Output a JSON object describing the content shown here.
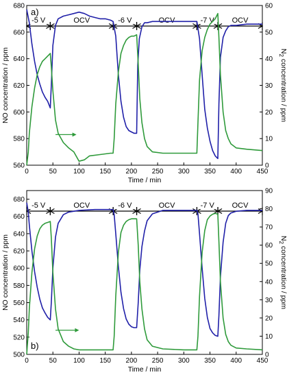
{
  "chart_data": [
    {
      "type": "line",
      "panel_label": "a)",
      "xlabel": "Time / min",
      "ylabel_left": "NO concentration / ppm",
      "ylabel_right_prefix": "N",
      "ylabel_right_sub": "2",
      "ylabel_right_suffix": " concentration / ppm",
      "xlim": [
        0,
        450
      ],
      "ylim_left": [
        560,
        680
      ],
      "ylim_right": [
        0,
        60
      ],
      "x_ticks": [
        0,
        50,
        100,
        150,
        200,
        250,
        300,
        350,
        400,
        450
      ],
      "y_ticks_left": [
        560,
        580,
        600,
        620,
        640,
        660,
        680
      ],
      "y_ticks_right": [
        0,
        10,
        20,
        30,
        40,
        50,
        60
      ],
      "phases": [
        {
          "label": "-5 V",
          "start": 0,
          "end": 45
        },
        {
          "label": "OCV",
          "start": 45,
          "end": 165
        },
        {
          "label": "-6 V",
          "start": 165,
          "end": 210
        },
        {
          "label": "OCV",
          "start": 210,
          "end": 325
        },
        {
          "label": "-7 V",
          "start": 325,
          "end": 365
        },
        {
          "label": "OCV",
          "start": 365,
          "end": 450
        }
      ],
      "arrow": {
        "from_x": 55,
        "to_x": 95,
        "y_left": 583
      },
      "series": [
        {
          "axis": "left",
          "color": "#1f1fa8",
          "x": [
            0,
            5,
            10,
            15,
            20,
            25,
            30,
            35,
            40,
            45,
            47,
            50,
            55,
            60,
            70,
            80,
            90,
            100,
            110,
            120,
            130,
            140,
            150,
            160,
            165,
            170,
            175,
            180,
            185,
            190,
            195,
            200,
            205,
            210,
            212,
            215,
            220,
            225,
            230,
            240,
            250,
            260,
            280,
            300,
            320,
            325,
            330,
            335,
            340,
            345,
            350,
            355,
            360,
            365,
            367,
            370,
            375,
            380,
            385,
            390,
            400,
            420,
            450
          ],
          "y": [
            677,
            667,
            651,
            638,
            628,
            621,
            615,
            611,
            608,
            603,
            620,
            650,
            665,
            670,
            672,
            673,
            674,
            675,
            674,
            672,
            671,
            670,
            670,
            669,
            668,
            657,
            628,
            608,
            596,
            589,
            586,
            585,
            584,
            584,
            635,
            655,
            664,
            667,
            667,
            668,
            668,
            668,
            668,
            668,
            668,
            668,
            655,
            628,
            602,
            588,
            578,
            571,
            567,
            565,
            606,
            641,
            656,
            661,
            664,
            665,
            665,
            666,
            666
          ]
        },
        {
          "axis": "right",
          "color": "#2e9a3a",
          "x": [
            0,
            3,
            5,
            10,
            15,
            20,
            25,
            30,
            35,
            40,
            45,
            47,
            50,
            55,
            60,
            70,
            80,
            90,
            100,
            110,
            120,
            140,
            160,
            165,
            167,
            170,
            175,
            180,
            185,
            190,
            195,
            200,
            205,
            210,
            213,
            216,
            220,
            225,
            230,
            240,
            260,
            280,
            300,
            325,
            327,
            330,
            335,
            340,
            345,
            350,
            355,
            360,
            365,
            367,
            370,
            375,
            380,
            385,
            390,
            400,
            420,
            450
          ],
          "y": [
            0,
            5,
            12,
            22,
            29,
            34,
            37,
            39,
            40,
            41,
            42,
            37,
            28,
            17,
            12,
            8.5,
            6.5,
            5,
            1.5,
            2,
            3.5,
            4,
            4.5,
            4.5,
            10,
            23,
            35,
            42,
            45,
            47,
            48,
            48.5,
            48.5,
            49,
            38,
            25,
            16,
            10,
            7,
            5,
            4.5,
            4.5,
            4.5,
            4.5,
            16,
            32,
            43,
            48,
            51,
            53,
            54,
            55,
            57,
            48,
            34,
            20,
            13,
            10,
            8,
            6.5,
            6,
            5.5
          ]
        }
      ]
    },
    {
      "type": "line",
      "panel_label": "b)",
      "xlabel": "Time / min",
      "ylabel_left": "NO concentration / ppm",
      "ylabel_right_prefix": "N",
      "ylabel_right_sub": "2",
      "ylabel_right_suffix": " concentration / ppm",
      "xlim": [
        0,
        450
      ],
      "ylim_left": [
        500,
        690
      ],
      "ylim_right": [
        0,
        90
      ],
      "x_ticks": [
        0,
        50,
        100,
        150,
        200,
        250,
        300,
        350,
        400,
        450
      ],
      "y_ticks_left": [
        500,
        520,
        540,
        560,
        580,
        600,
        620,
        640,
        660,
        680
      ],
      "y_ticks_right": [
        0,
        10,
        20,
        30,
        40,
        50,
        60,
        70,
        80,
        90
      ],
      "phases": [
        {
          "label": "-5 V",
          "start": 0,
          "end": 45
        },
        {
          "label": "OCV",
          "start": 45,
          "end": 165
        },
        {
          "label": "-6 V",
          "start": 165,
          "end": 210
        },
        {
          "label": "OCV",
          "start": 210,
          "end": 325
        },
        {
          "label": "-7 V",
          "start": 325,
          "end": 365
        },
        {
          "label": "OCV",
          "start": 365,
          "end": 450
        }
      ],
      "arrow": {
        "from_x": 55,
        "to_x": 100,
        "y_left": 528
      },
      "series": [
        {
          "axis": "left",
          "color": "#1f1fa8",
          "x": [
            0,
            3,
            5,
            10,
            15,
            20,
            25,
            30,
            35,
            40,
            45,
            47,
            50,
            55,
            60,
            70,
            80,
            100,
            130,
            165,
            167,
            170,
            175,
            180,
            185,
            190,
            195,
            200,
            205,
            210,
            213,
            216,
            220,
            225,
            230,
            240,
            260,
            300,
            325,
            327,
            330,
            335,
            340,
            345,
            350,
            355,
            360,
            365,
            367,
            370,
            375,
            380,
            385,
            390,
            400,
            420,
            450
          ],
          "y": [
            676,
            665,
            650,
            620,
            596,
            578,
            564,
            554,
            548,
            543,
            540,
            560,
            600,
            636,
            652,
            662,
            665,
            667,
            668,
            668,
            662,
            640,
            602,
            572,
            553,
            541,
            535,
            532,
            531,
            531,
            560,
            598,
            625,
            643,
            655,
            663,
            667,
            667,
            667,
            663,
            640,
            600,
            565,
            543,
            530,
            525,
            522,
            521,
            545,
            590,
            630,
            652,
            661,
            664,
            666,
            667,
            667
          ]
        },
        {
          "axis": "right",
          "color": "#2e9a3a",
          "x": [
            0,
            3,
            5,
            10,
            15,
            20,
            25,
            30,
            35,
            40,
            45,
            47,
            50,
            55,
            60,
            70,
            80,
            90,
            100,
            120,
            165,
            167,
            170,
            175,
            180,
            185,
            190,
            195,
            200,
            210,
            213,
            216,
            220,
            225,
            230,
            240,
            260,
            300,
            325,
            327,
            330,
            335,
            340,
            345,
            350,
            355,
            360,
            365,
            367,
            370,
            375,
            380,
            385,
            390,
            400,
            420,
            450
          ],
          "y": [
            0,
            12,
            25,
            45,
            58,
            65,
            69,
            71,
            72,
            72.5,
            73,
            64,
            45,
            25,
            14,
            7,
            4.5,
            3,
            2.5,
            2.5,
            2.5,
            10,
            32,
            56,
            67,
            71,
            73,
            74,
            74.5,
            74.5,
            60,
            40,
            25,
            14,
            8,
            4.5,
            3,
            2.5,
            2.5,
            10,
            32,
            56,
            68,
            74,
            76,
            77,
            77.5,
            77,
            62,
            40,
            20,
            11,
            7,
            5,
            3.5,
            3,
            2.5
          ]
        }
      ]
    }
  ]
}
